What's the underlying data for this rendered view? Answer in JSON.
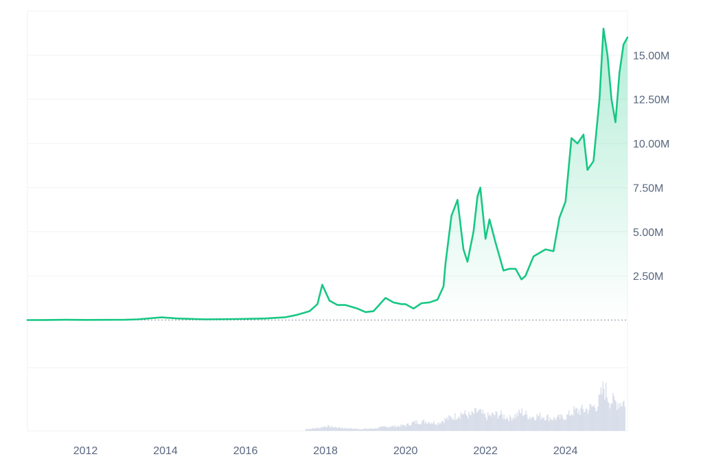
{
  "chart_data": {
    "type": "area",
    "title": "",
    "xlabel": "",
    "ylabel": "",
    "x_ticks": [
      "2012",
      "2014",
      "2016",
      "2018",
      "2020",
      "2022",
      "2024"
    ],
    "y_ticks": [
      "2.50M",
      "5.00M",
      "7.50M",
      "10.00M",
      "12.50M",
      "15.00M"
    ],
    "y_tick_values": [
      2500000,
      5000000,
      7500000,
      10000000,
      12500000,
      15000000
    ],
    "xlim": [
      2010.55,
      2025.55
    ],
    "ylim": [
      -2700000,
      17500000
    ],
    "grid": true,
    "baseline_value": 0,
    "legend": "none",
    "colors": {
      "line": "#16c784",
      "area_top": "#16c784",
      "grid": "#eff2f5",
      "axis_text": "#58667e",
      "volume": "#cfd6e4",
      "baseline": "#808a9d"
    },
    "series": [
      {
        "values": [
          [
            2010.55,
            0
          ],
          [
            2011.0,
            2000
          ],
          [
            2011.5,
            15000
          ],
          [
            2012.0,
            8000
          ],
          [
            2012.5,
            10000
          ],
          [
            2013.0,
            15000
          ],
          [
            2013.3,
            40000
          ],
          [
            2013.9,
            150000
          ],
          [
            2014.3,
            90000
          ],
          [
            2015.0,
            40000
          ],
          [
            2015.8,
            60000
          ],
          [
            2016.5,
            90000
          ],
          [
            2017.0,
            160000
          ],
          [
            2017.3,
            300000
          ],
          [
            2017.6,
            500000
          ],
          [
            2017.8,
            900000
          ],
          [
            2017.92,
            2000000
          ],
          [
            2018.1,
            1100000
          ],
          [
            2018.3,
            850000
          ],
          [
            2018.5,
            850000
          ],
          [
            2018.8,
            650000
          ],
          [
            2019.0,
            450000
          ],
          [
            2019.2,
            500000
          ],
          [
            2019.5,
            1250000
          ],
          [
            2019.7,
            1000000
          ],
          [
            2019.9,
            900000
          ],
          [
            2020.0,
            900000
          ],
          [
            2020.2,
            650000
          ],
          [
            2020.4,
            950000
          ],
          [
            2020.6,
            1000000
          ],
          [
            2020.8,
            1150000
          ],
          [
            2020.95,
            1900000
          ],
          [
            2021.0,
            3200000
          ],
          [
            2021.15,
            5900000
          ],
          [
            2021.3,
            6800000
          ],
          [
            2021.45,
            4000000
          ],
          [
            2021.55,
            3300000
          ],
          [
            2021.7,
            5000000
          ],
          [
            2021.8,
            7000000
          ],
          [
            2021.87,
            7500000
          ],
          [
            2022.0,
            4600000
          ],
          [
            2022.1,
            5700000
          ],
          [
            2022.25,
            4400000
          ],
          [
            2022.45,
            2800000
          ],
          [
            2022.6,
            2900000
          ],
          [
            2022.75,
            2900000
          ],
          [
            2022.9,
            2300000
          ],
          [
            2023.0,
            2500000
          ],
          [
            2023.2,
            3600000
          ],
          [
            2023.5,
            4000000
          ],
          [
            2023.7,
            3900000
          ],
          [
            2023.85,
            5800000
          ],
          [
            2024.0,
            6700000
          ],
          [
            2024.15,
            10300000
          ],
          [
            2024.3,
            10000000
          ],
          [
            2024.45,
            10500000
          ],
          [
            2024.55,
            8500000
          ],
          [
            2024.7,
            9000000
          ],
          [
            2024.85,
            12500000
          ],
          [
            2024.95,
            16500000
          ],
          [
            2025.05,
            15000000
          ],
          [
            2025.15,
            12500000
          ],
          [
            2025.25,
            11200000
          ],
          [
            2025.35,
            14000000
          ],
          [
            2025.45,
            15600000
          ],
          [
            2025.55,
            16000000
          ]
        ]
      }
    ],
    "volume": [
      [
        2017.5,
        0.04
      ],
      [
        2017.8,
        0.06
      ],
      [
        2018.0,
        0.1
      ],
      [
        2018.3,
        0.07
      ],
      [
        2018.6,
        0.05
      ],
      [
        2018.9,
        0.04
      ],
      [
        2019.2,
        0.05
      ],
      [
        2019.5,
        0.09
      ],
      [
        2019.8,
        0.1
      ],
      [
        2020.0,
        0.12
      ],
      [
        2020.2,
        0.18
      ],
      [
        2020.5,
        0.2
      ],
      [
        2020.8,
        0.17
      ],
      [
        2021.0,
        0.25
      ],
      [
        2021.2,
        0.3
      ],
      [
        2021.4,
        0.38
      ],
      [
        2021.6,
        0.32
      ],
      [
        2021.8,
        0.42
      ],
      [
        2022.0,
        0.3
      ],
      [
        2022.3,
        0.36
      ],
      [
        2022.6,
        0.27
      ],
      [
        2022.9,
        0.4
      ],
      [
        2023.1,
        0.3
      ],
      [
        2023.4,
        0.32
      ],
      [
        2023.7,
        0.26
      ],
      [
        2024.0,
        0.3
      ],
      [
        2024.2,
        0.42
      ],
      [
        2024.5,
        0.45
      ],
      [
        2024.8,
        0.56
      ],
      [
        2024.95,
        0.93
      ],
      [
        2025.1,
        0.65
      ],
      [
        2025.3,
        0.6
      ],
      [
        2025.5,
        0.62
      ]
    ]
  }
}
